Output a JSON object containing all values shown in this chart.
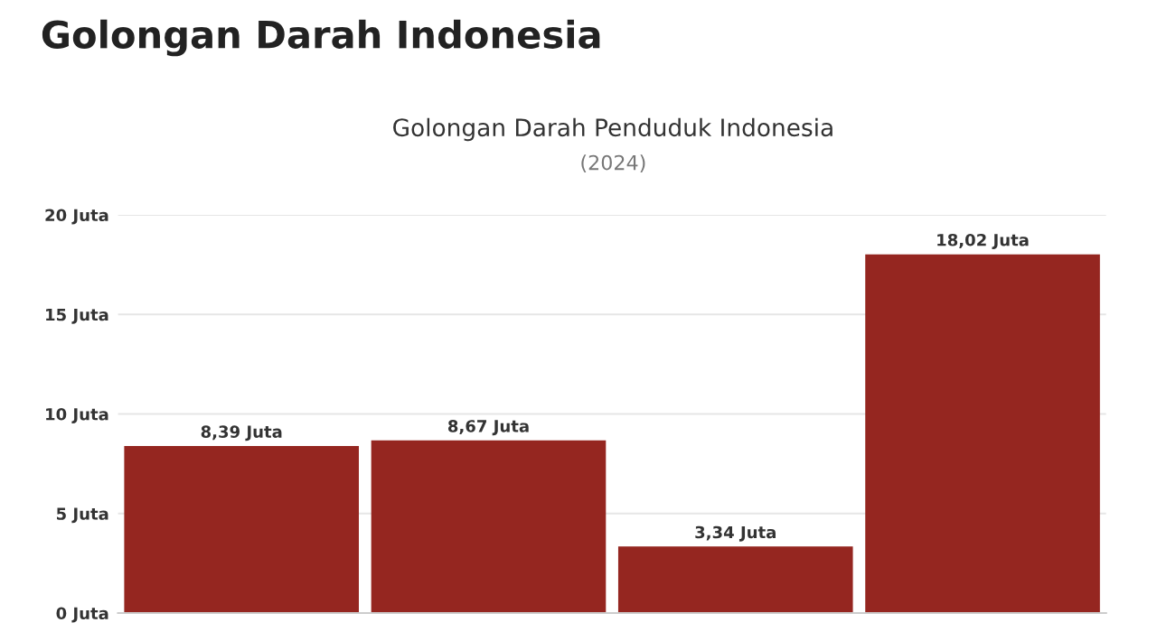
{
  "chart_data": {
    "type": "bar",
    "title": "Golongan Darah Indonesia",
    "subtitle": "Golongan Darah Penduduk Indonesia",
    "annotations": [
      "(2024)"
    ],
    "categories": [
      null,
      null,
      null,
      null
    ],
    "values": [
      8.39,
      8.67,
      3.34,
      18.02
    ],
    "value_labels": [
      "8,39 Juta",
      "8,67 Juta",
      "3,34 Juta",
      "18,02 Juta"
    ],
    "color": "#952620",
    "ylim": [
      0,
      20
    ],
    "yticks": [
      {
        "value": 0,
        "label": "0 Juta"
      },
      {
        "value": 5,
        "label": "5 Juta"
      },
      {
        "value": 10,
        "label": "10 Juta"
      },
      {
        "value": 15,
        "label": "15 Juta"
      },
      {
        "value": 20,
        "label": "20 Juta"
      }
    ],
    "grid": "y"
  }
}
